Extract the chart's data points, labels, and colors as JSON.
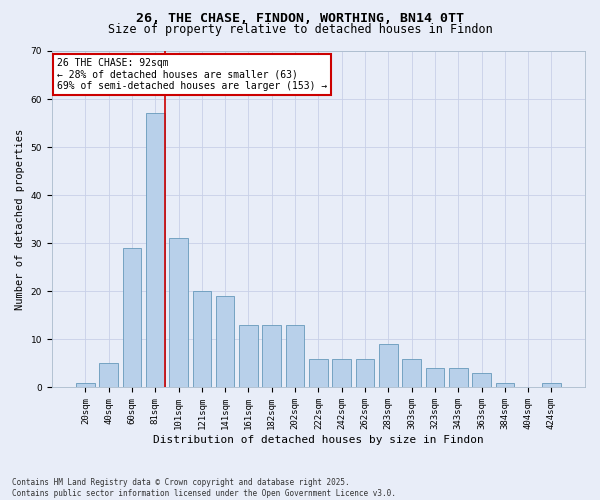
{
  "title": "26, THE CHASE, FINDON, WORTHING, BN14 0TT",
  "subtitle": "Size of property relative to detached houses in Findon",
  "xlabel": "Distribution of detached houses by size in Findon",
  "ylabel": "Number of detached properties",
  "categories": [
    "20sqm",
    "40sqm",
    "60sqm",
    "81sqm",
    "101sqm",
    "121sqm",
    "141sqm",
    "161sqm",
    "182sqm",
    "202sqm",
    "222sqm",
    "242sqm",
    "262sqm",
    "283sqm",
    "303sqm",
    "323sqm",
    "343sqm",
    "363sqm",
    "384sqm",
    "404sqm",
    "424sqm"
  ],
  "values": [
    1,
    5,
    29,
    57,
    31,
    20,
    19,
    13,
    13,
    13,
    6,
    6,
    6,
    9,
    6,
    4,
    4,
    3,
    1,
    0,
    1
  ],
  "bar_color": "#b8d0ea",
  "bar_edge_color": "#6699bb",
  "bar_edge_width": 0.6,
  "ylim": [
    0,
    70
  ],
  "yticks": [
    0,
    10,
    20,
    30,
    40,
    50,
    60,
    70
  ],
  "property_line_color": "#cc0000",
  "annotation_text": "26 THE CHASE: 92sqm\n← 28% of detached houses are smaller (63)\n69% of semi-detached houses are larger (153) →",
  "annotation_box_color": "#cc0000",
  "bg_color": "#e8edf8",
  "footer_text": "Contains HM Land Registry data © Crown copyright and database right 2025.\nContains public sector information licensed under the Open Government Licence v3.0.",
  "title_fontsize": 9.5,
  "subtitle_fontsize": 8.5,
  "xlabel_fontsize": 8,
  "ylabel_fontsize": 7.5,
  "tick_fontsize": 6.5,
  "annotation_fontsize": 7,
  "footer_fontsize": 5.5
}
